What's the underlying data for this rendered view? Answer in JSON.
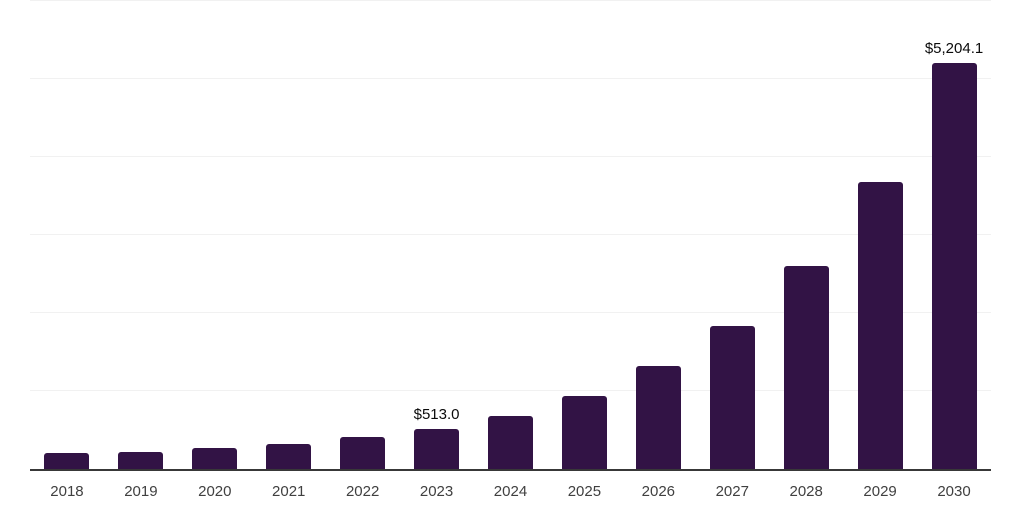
{
  "chart_data": {
    "type": "bar",
    "title": "",
    "xlabel": "",
    "ylabel": "",
    "categories": [
      "2018",
      "2019",
      "2020",
      "2021",
      "2022",
      "2023",
      "2024",
      "2025",
      "2026",
      "2027",
      "2028",
      "2029",
      "2030"
    ],
    "values": [
      210,
      220,
      275,
      320,
      405,
      513.0,
      680,
      930,
      1315,
      1835,
      2600,
      3680,
      5204.1
    ],
    "bar_labels": [
      "",
      "",
      "",
      "",
      "",
      "$513.0",
      "",
      "",
      "",
      "",
      "",
      "",
      "$5,204.1"
    ],
    "ylim": [
      0,
      6000
    ],
    "grid_step": 1000,
    "grid": true,
    "y_axis_tick_labels_visible": false,
    "legend": false,
    "colors": {
      "bar": "#321345",
      "gridline": "#f1f1f1",
      "axis": "#383838",
      "bar_label_text": "#0b0b0b",
      "x_tick_text": "#404040",
      "background": "#ffffff"
    }
  }
}
